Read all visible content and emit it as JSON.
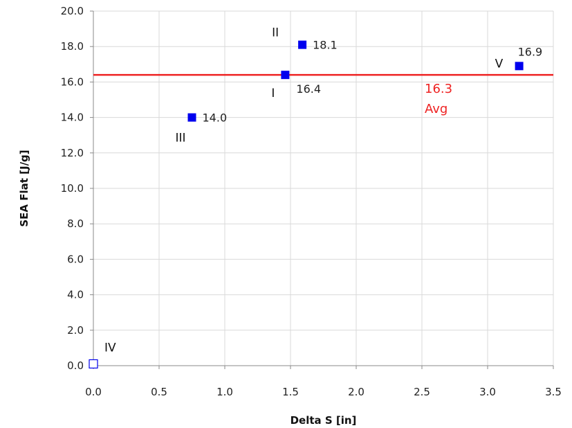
{
  "chart_data": {
    "type": "scatter",
    "title": "",
    "xlabel": "Delta S [in]",
    "ylabel": "SEA Flat [J/g]",
    "xlim": [
      0,
      3.5
    ],
    "ylim": [
      0,
      20
    ],
    "x_ticks": [
      "0.0",
      "0.5",
      "1.0",
      "1.5",
      "2.0",
      "2.5",
      "3.0",
      "3.5"
    ],
    "y_ticks": [
      "0.0",
      "2.0",
      "4.0",
      "6.0",
      "8.0",
      "10.0",
      "12.0",
      "14.0",
      "16.0",
      "18.0",
      "20.0"
    ],
    "grid": true,
    "points": [
      {
        "label": "I",
        "x": 1.46,
        "y": 16.4,
        "value_label": "16.4",
        "filled": true
      },
      {
        "label": "II",
        "x": 1.59,
        "y": 18.1,
        "value_label": "18.1",
        "filled": true
      },
      {
        "label": "III",
        "x": 0.75,
        "y": 14.0,
        "value_label": "14.0",
        "filled": true
      },
      {
        "label": "IV",
        "x": 0.0,
        "y": 0.1,
        "value_label": "",
        "filled": false
      },
      {
        "label": "V",
        "x": 3.24,
        "y": 16.9,
        "value_label": "16.9",
        "filled": true
      }
    ],
    "average_line": {
      "y": 16.4,
      "value_label": "16.3",
      "text": "Avg",
      "color": "#ee2222"
    },
    "marker_color": "#0000ee"
  }
}
